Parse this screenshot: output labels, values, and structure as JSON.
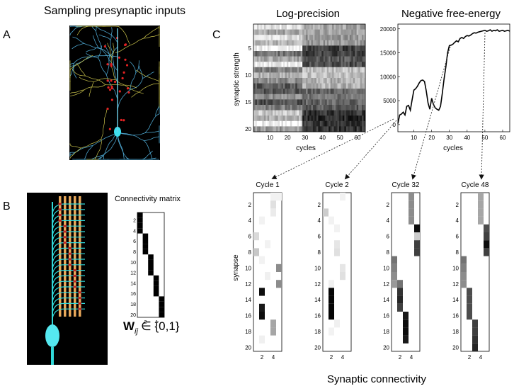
{
  "panel_a": {
    "letter": "A",
    "title": "Sampling presynaptic inputs"
  },
  "panel_b": {
    "letter": "B",
    "matrix_title": "Connectivity matrix",
    "y_ticks": [
      "2",
      "4",
      "6",
      "8",
      "10",
      "12",
      "14",
      "16",
      "18",
      "20"
    ],
    "x_ticks": [
      "2",
      "4"
    ],
    "equation": {
      "main": "W",
      "subscript": "ij",
      "rest": "∈ {0,1}"
    },
    "chart_data": {
      "type": "heatmap",
      "rows": 20,
      "cols": 5,
      "note_values": "1 = connected (black), 0 = unconnected (white)",
      "values": [
        [
          1,
          0,
          0,
          0,
          0
        ],
        [
          1,
          0,
          0,
          0,
          0
        ],
        [
          1,
          0,
          0,
          0,
          0
        ],
        [
          1,
          0,
          0,
          0,
          0
        ],
        [
          0,
          1,
          0,
          0,
          0
        ],
        [
          0,
          1,
          0,
          0,
          0
        ],
        [
          0,
          1,
          0,
          0,
          0
        ],
        [
          0,
          1,
          0,
          0,
          0
        ],
        [
          0,
          0,
          1,
          0,
          0
        ],
        [
          0,
          0,
          1,
          0,
          0
        ],
        [
          0,
          0,
          1,
          0,
          0
        ],
        [
          0,
          0,
          1,
          0,
          0
        ],
        [
          0,
          0,
          0,
          1,
          0
        ],
        [
          0,
          0,
          0,
          1,
          0
        ],
        [
          0,
          0,
          0,
          1,
          0
        ],
        [
          0,
          0,
          0,
          1,
          0
        ],
        [
          0,
          0,
          0,
          0,
          1
        ],
        [
          0,
          0,
          0,
          0,
          1
        ],
        [
          0,
          0,
          0,
          0,
          1
        ],
        [
          0,
          0,
          0,
          0,
          1
        ]
      ]
    }
  },
  "panel_c": {
    "letter": "C",
    "log_precision": {
      "title": "Log-precision",
      "ylabel": "synaptic strength",
      "xlabel": "cycles",
      "y_ticks": [
        "5",
        "10",
        "15",
        "20"
      ],
      "x_ticks": [
        "10",
        "20",
        "30",
        "40",
        "50",
        "60"
      ],
      "chart_data": {
        "type": "heatmap",
        "rows": 20,
        "cols": 64,
        "grey_scale": "0 = white, 1 = black",
        "row_levels_early": [
          0.1,
          0.35,
          0.15,
          0.3,
          0.05,
          0.55,
          0.35,
          0.05,
          0.5,
          0.3,
          0.45,
          0.65,
          0.65,
          0.45,
          0.7,
          0.5,
          0.2,
          0.3,
          0.05,
          0.4
        ],
        "row_levels_late": [
          0.35,
          0.35,
          0.4,
          0.4,
          0.75,
          0.75,
          0.65,
          0.7,
          0.25,
          0.25,
          0.3,
          0.3,
          0.6,
          0.55,
          0.6,
          0.65,
          0.8,
          0.85,
          0.8,
          0.8
        ],
        "transition_cycle": 28
      }
    },
    "free_energy": {
      "title": "Negative free-energy",
      "xlabel": "cycles",
      "y_ticks": [
        "0",
        "5000",
        "10000",
        "15000",
        "20000"
      ],
      "x_ticks": [
        "10",
        "20",
        "30",
        "40",
        "50",
        "60"
      ],
      "chart_data": {
        "type": "line",
        "xlim": [
          1,
          64
        ],
        "ylim": [
          -1500,
          21000
        ],
        "x": [
          1,
          2,
          3,
          4,
          5,
          6,
          7,
          8,
          9,
          10,
          11,
          12,
          13,
          14,
          15,
          16,
          17,
          18,
          19,
          20,
          21,
          22,
          23,
          24,
          25,
          26,
          27,
          28,
          29,
          30,
          31,
          32,
          33,
          34,
          35,
          36,
          37,
          38,
          39,
          40,
          41,
          42,
          43,
          44,
          45,
          46,
          47,
          48,
          49,
          50,
          51,
          52,
          53,
          54,
          55,
          56,
          57,
          58,
          59,
          60,
          61,
          62,
          63,
          64
        ],
        "y": [
          200,
          2000,
          2200,
          2600,
          2000,
          3800,
          4000,
          3000,
          5200,
          7200,
          7500,
          8000,
          8700,
          9200,
          9300,
          9000,
          7000,
          4500,
          3200,
          5500,
          4200,
          3500,
          3200,
          3000,
          3800,
          6500,
          9500,
          12000,
          15000,
          16500,
          16600,
          16800,
          17200,
          17500,
          17300,
          18000,
          18200,
          18000,
          18400,
          18600,
          18500,
          18700,
          19000,
          19200,
          19100,
          19300,
          19400,
          19500,
          19600,
          19700,
          19500,
          19600,
          19800,
          19500,
          19700,
          19600,
          19800,
          19500,
          19600,
          19700,
          19500,
          19600,
          19700,
          19500
        ]
      }
    },
    "cycles": [
      {
        "title": "Cycle 1",
        "xlabel_ticks": [
          "2",
          "4"
        ],
        "chart_data": {
          "type": "heatmap",
          "rows": 20,
          "cols": 5,
          "cells": [
            [
              0,
              3,
              0.05
            ],
            [
              0,
              4,
              0.05
            ],
            [
              1,
              3,
              0.12
            ],
            [
              2,
              3,
              0.08
            ],
            [
              3,
              1,
              0.05
            ],
            [
              5,
              0,
              0.15
            ],
            [
              6,
              2,
              0.05
            ],
            [
              7,
              0,
              0.22
            ],
            [
              8,
              1,
              0.05
            ],
            [
              9,
              4,
              0.45
            ],
            [
              10,
              2,
              0.06
            ],
            [
              11,
              4,
              0.45
            ],
            [
              12,
              1,
              0.95
            ],
            [
              14,
              1,
              0.9
            ],
            [
              15,
              1,
              0.95
            ],
            [
              16,
              3,
              0.35
            ],
            [
              17,
              3,
              0.35
            ],
            [
              18,
              1,
              0.06
            ]
          ]
        }
      },
      {
        "title": "Cycle 2",
        "xlabel_ticks": [
          "2",
          "4"
        ],
        "chart_data": {
          "type": "heatmap",
          "rows": 20,
          "cols": 5,
          "cells": [
            [
              0,
              3,
              0.05
            ],
            [
              2,
              0,
              0.2
            ],
            [
              3,
              1,
              0.05
            ],
            [
              4,
              2,
              0.05
            ],
            [
              6,
              2,
              0.1
            ],
            [
              7,
              2,
              0.12
            ],
            [
              9,
              3,
              0.1
            ],
            [
              10,
              3,
              0.12
            ],
            [
              11,
              1,
              0.06
            ],
            [
              12,
              1,
              0.98
            ],
            [
              13,
              1,
              0.98
            ],
            [
              14,
              1,
              0.98
            ],
            [
              15,
              1,
              0.98
            ],
            [
              16,
              2,
              0.06
            ],
            [
              17,
              1,
              0.05
            ]
          ]
        }
      },
      {
        "title": "Cycle 32",
        "xlabel_ticks": [
          "2",
          "4"
        ],
        "chart_data": {
          "type": "heatmap",
          "rows": 20,
          "cols": 5,
          "cells": [
            [
              0,
              3,
              0.45
            ],
            [
              1,
              3,
              0.45
            ],
            [
              2,
              3,
              0.45
            ],
            [
              3,
              3,
              0.45
            ],
            [
              4,
              4,
              0.95
            ],
            [
              5,
              4,
              0.2
            ],
            [
              6,
              4,
              0.75
            ],
            [
              7,
              4,
              0.75
            ],
            [
              8,
              0,
              0.55
            ],
            [
              9,
              0,
              0.5
            ],
            [
              10,
              0,
              0.45
            ],
            [
              11,
              0,
              0.4
            ],
            [
              11,
              1,
              0.55
            ],
            [
              12,
              1,
              0.8
            ],
            [
              13,
              1,
              0.85
            ],
            [
              14,
              1,
              0.75
            ],
            [
              15,
              2,
              0.9
            ],
            [
              16,
              2,
              0.95
            ],
            [
              17,
              2,
              0.95
            ],
            [
              18,
              2,
              0.9
            ]
          ]
        }
      },
      {
        "title": "Cycle 48",
        "xlabel_ticks": [
          "2",
          "4"
        ],
        "chart_data": {
          "type": "heatmap",
          "rows": 20,
          "cols": 5,
          "cells": [
            [
              0,
              3,
              0.35
            ],
            [
              1,
              3,
              0.35
            ],
            [
              2,
              3,
              0.35
            ],
            [
              3,
              3,
              0.35
            ],
            [
              4,
              4,
              0.7
            ],
            [
              5,
              4,
              0.75
            ],
            [
              6,
              4,
              0.95
            ],
            [
              7,
              4,
              0.75
            ],
            [
              8,
              0,
              0.55
            ],
            [
              9,
              0,
              0.5
            ],
            [
              10,
              0,
              0.45
            ],
            [
              11,
              0,
              0.45
            ],
            [
              12,
              1,
              0.7
            ],
            [
              13,
              1,
              0.7
            ],
            [
              14,
              1,
              0.7
            ],
            [
              15,
              1,
              0.7
            ],
            [
              16,
              2,
              0.75
            ],
            [
              17,
              2,
              0.75
            ],
            [
              18,
              2,
              0.8
            ],
            [
              19,
              2,
              0.85
            ]
          ]
        }
      }
    ],
    "synapse_label": "synapse",
    "y_ticks": [
      "2",
      "4",
      "6",
      "8",
      "10",
      "12",
      "14",
      "16",
      "18",
      "20"
    ],
    "footer": "Synaptic connectivity"
  }
}
